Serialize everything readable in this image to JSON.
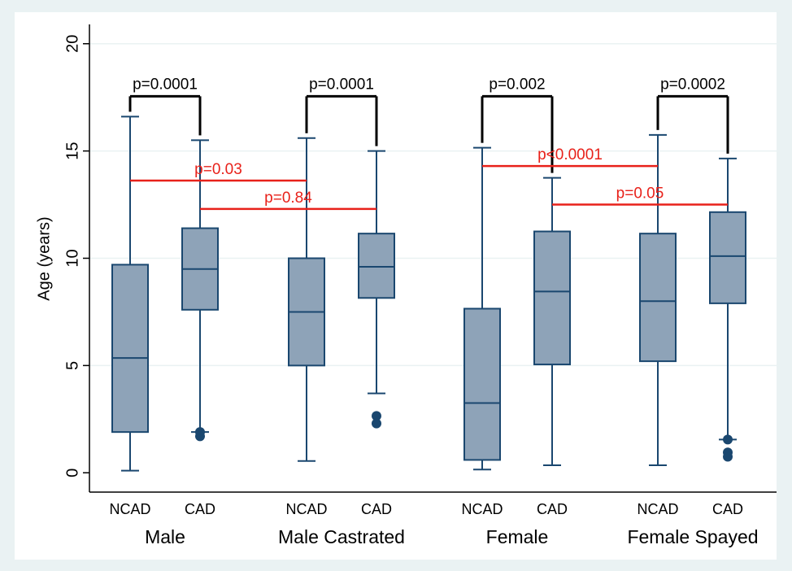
{
  "chart_data": {
    "type": "box",
    "y_label": "Age (years)",
    "ylim": [
      -0.9,
      20.9
    ],
    "yticks": [
      0,
      5,
      10,
      15,
      20
    ],
    "grid": true,
    "box_color": "#8ea3b8",
    "line_color": "#1a476f",
    "bracket_color": "#000000",
    "comparison_color": "#e8211a",
    "groups": [
      {
        "name": "Male",
        "bracket": {
          "label": "p=0.0001",
          "y": 17.55
        },
        "boxes": [
          {
            "name": "NCAD",
            "whisker_low": 0.1,
            "q1": 1.9,
            "median": 5.35,
            "q3": 9.7,
            "whisker_high": 16.6,
            "outliers": []
          },
          {
            "name": "CAD",
            "whisker_low": 1.9,
            "q1": 7.6,
            "median": 9.5,
            "q3": 11.4,
            "whisker_high": 15.5,
            "outliers": [
              1.9,
              1.7
            ]
          }
        ]
      },
      {
        "name": "Male Castrated",
        "bracket": {
          "label": "p=0.0001",
          "y": 17.55
        },
        "boxes": [
          {
            "name": "NCAD",
            "whisker_low": 0.55,
            "q1": 5.0,
            "median": 7.5,
            "q3": 10.0,
            "whisker_high": 15.6,
            "outliers": []
          },
          {
            "name": "CAD",
            "whisker_low": 3.7,
            "q1": 8.15,
            "median": 9.6,
            "q3": 11.15,
            "whisker_high": 15.0,
            "outliers": [
              2.65,
              2.3
            ]
          }
        ]
      },
      {
        "name": "Female",
        "bracket": {
          "label": "p=0.002",
          "y": 17.55
        },
        "boxes": [
          {
            "name": "NCAD",
            "whisker_low": 0.15,
            "q1": 0.6,
            "median": 3.25,
            "q3": 7.65,
            "whisker_high": 15.15,
            "outliers": []
          },
          {
            "name": "CAD",
            "whisker_low": 0.35,
            "q1": 5.05,
            "median": 8.45,
            "q3": 11.25,
            "whisker_high": 13.75,
            "outliers": []
          }
        ]
      },
      {
        "name": "Female Spayed",
        "bracket": {
          "label": "p=0.0002",
          "y": 17.55
        },
        "boxes": [
          {
            "name": "NCAD",
            "whisker_low": 0.35,
            "q1": 5.2,
            "median": 8.0,
            "q3": 11.15,
            "whisker_high": 15.75,
            "outliers": []
          },
          {
            "name": "CAD",
            "whisker_low": 1.55,
            "q1": 7.9,
            "median": 10.1,
            "q3": 12.15,
            "whisker_high": 14.65,
            "outliers": [
              1.55,
              0.95,
              0.75
            ]
          }
        ]
      }
    ],
    "comparisons": [
      {
        "label": "p=0.03",
        "y": 13.62,
        "from": [
          0,
          0
        ],
        "to": [
          1,
          0
        ]
      },
      {
        "label": "p=0.84",
        "y": 12.3,
        "from": [
          0,
          1
        ],
        "to": [
          1,
          1
        ]
      },
      {
        "label": "p<0.0001",
        "y": 14.3,
        "from": [
          2,
          0
        ],
        "to": [
          3,
          0
        ]
      },
      {
        "label": "p=0.05",
        "y": 12.5,
        "from": [
          2,
          1
        ],
        "to": [
          3,
          1
        ]
      }
    ]
  }
}
